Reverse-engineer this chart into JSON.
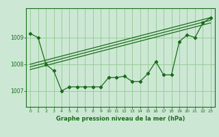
{
  "background_color": "#cce8d4",
  "grid_color": "#99cc99",
  "line_color": "#1a6b1a",
  "marker_color": "#1a6b1a",
  "xlabel": "Graphe pression niveau de la mer (hPa)",
  "xlabel_color": "#1a6b1a",
  "ylim": [
    1006.4,
    1010.1
  ],
  "xlim": [
    -0.5,
    23.5
  ],
  "yticks": [
    1007,
    1008,
    1009
  ],
  "xticks": [
    0,
    1,
    2,
    3,
    4,
    5,
    6,
    7,
    8,
    9,
    10,
    11,
    12,
    13,
    14,
    15,
    16,
    17,
    18,
    19,
    20,
    21,
    22,
    23
  ],
  "series1_x": [
    0,
    1,
    2,
    3,
    4,
    5,
    6,
    7,
    8,
    9,
    10,
    11,
    12,
    13,
    14,
    15,
    16,
    17,
    18,
    19,
    20,
    21,
    22,
    23
  ],
  "series1_y": [
    1009.15,
    1009.0,
    1008.0,
    1007.75,
    1007.0,
    1007.15,
    1007.15,
    1007.15,
    1007.15,
    1007.15,
    1007.5,
    1007.5,
    1007.55,
    1007.35,
    1007.35,
    1007.65,
    1008.1,
    1007.6,
    1007.6,
    1008.85,
    1009.1,
    1009.0,
    1009.55,
    1009.75
  ],
  "series2_x": [
    0,
    23
  ],
  "series2_y": [
    1008.0,
    1009.75
  ],
  "series3_x": [
    0,
    23
  ],
  "series3_y": [
    1007.8,
    1009.55
  ],
  "series4_x": [
    0,
    23
  ],
  "series4_y": [
    1007.9,
    1009.65
  ]
}
